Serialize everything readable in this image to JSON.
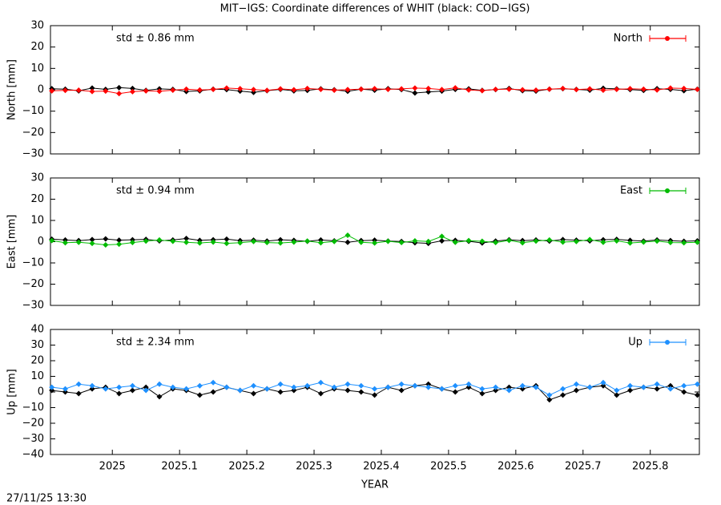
{
  "title": "MIT−IGS: Coordinate differences of WHIT (black: COD−IGS)",
  "x_label": "YEAR",
  "timestamp": "27/11/25 13:30",
  "chart_data": [
    {
      "type": "scatter",
      "y_label": "North [mm]",
      "annotation": "std ± 0.86 mm",
      "annotation_color": "#ff0000",
      "legend": "top-right",
      "xlim": [
        2024.908,
        2025.873
      ],
      "xticks": [
        2025,
        2025.1,
        2025.2,
        2025.3,
        2025.4,
        2025.5,
        2025.6,
        2025.7,
        2025.8
      ],
      "ylim": [
        -30,
        30
      ],
      "yticks": [
        {
          "value": -30,
          "label": "−30"
        },
        {
          "value": -20,
          "label": "−20"
        },
        {
          "value": -10,
          "label": "−10"
        },
        0,
        10,
        20,
        30
      ],
      "x": [
        2024.91,
        2024.93,
        2024.95,
        2024.97,
        2024.99,
        2025.01,
        2025.03,
        2025.05,
        2025.07,
        2025.09,
        2025.11,
        2025.13,
        2025.15,
        2025.17,
        2025.19,
        2025.21,
        2025.23,
        2025.25,
        2025.27,
        2025.29,
        2025.31,
        2025.33,
        2025.35,
        2025.37,
        2025.39,
        2025.41,
        2025.43,
        2025.45,
        2025.47,
        2025.49,
        2025.51,
        2025.53,
        2025.55,
        2025.57,
        2025.59,
        2025.61,
        2025.63,
        2025.65,
        2025.67,
        2025.69,
        2025.71,
        2025.73,
        2025.75,
        2025.77,
        2025.79,
        2025.81,
        2025.83,
        2025.85,
        2025.87
      ],
      "series": [
        {
          "color": "#000000",
          "values": [
            0.5,
            0.3,
            -0.5,
            0.8,
            0.2,
            1.0,
            0.6,
            -0.3,
            0.4,
            0.2,
            -0.8,
            -0.5,
            0.3,
            0.1,
            -0.6,
            -1.2,
            -0.4,
            0.2,
            -0.5,
            -0.3,
            0.4,
            0.0,
            -0.7,
            0.3,
            -0.2,
            0.5,
            0.1,
            -1.5,
            -1.0,
            -0.6,
            0.2,
            0.4,
            -0.3,
            0.1,
            0.6,
            -0.4,
            -0.6,
            0.3,
            0.5,
            0.2,
            -0.2,
            0.7,
            0.4,
            0.1,
            -0.3,
            0.5,
            0.2,
            -0.4,
            0.3
          ]
        },
        {
          "name": "North",
          "color": "#ff0000",
          "values": [
            -0.5,
            -0.3,
            -0.2,
            -0.8,
            -0.6,
            -1.8,
            -0.9,
            -0.5,
            -0.7,
            -0.2,
            0.3,
            -0.1,
            0.2,
            0.8,
            0.5,
            0.1,
            -0.3,
            0.4,
            0.0,
            0.6,
            0.2,
            -0.2,
            0.1,
            0.3,
            0.5,
            0.2,
            0.4,
            0.8,
            0.6,
            0.1,
            0.9,
            -0.1,
            -0.4,
            0.2,
            0.3,
            0.0,
            -0.2,
            0.3,
            0.6,
            0.1,
            0.4,
            -0.2,
            0.2,
            0.5,
            0.3,
            -0.1,
            0.8,
            0.6,
            0.2
          ]
        }
      ]
    },
    {
      "type": "scatter",
      "y_label": "East [mm]",
      "annotation": "std ± 0.94 mm",
      "annotation_color": "#00bb00",
      "legend": "top-right",
      "xlim": [
        2024.908,
        2025.873
      ],
      "xticks": [
        2025,
        2025.1,
        2025.2,
        2025.3,
        2025.4,
        2025.5,
        2025.6,
        2025.7,
        2025.8
      ],
      "ylim": [
        -30,
        30
      ],
      "yticks": [
        {
          "value": -30,
          "label": "−30"
        },
        {
          "value": -20,
          "label": "−20"
        },
        {
          "value": -10,
          "label": "−10"
        },
        0,
        10,
        20,
        30
      ],
      "x": [
        2024.91,
        2024.93,
        2024.95,
        2024.97,
        2024.99,
        2025.01,
        2025.03,
        2025.05,
        2025.07,
        2025.09,
        2025.11,
        2025.13,
        2025.15,
        2025.17,
        2025.19,
        2025.21,
        2025.23,
        2025.25,
        2025.27,
        2025.29,
        2025.31,
        2025.33,
        2025.35,
        2025.37,
        2025.39,
        2025.41,
        2025.43,
        2025.45,
        2025.47,
        2025.49,
        2025.51,
        2025.53,
        2025.55,
        2025.57,
        2025.59,
        2025.61,
        2025.63,
        2025.65,
        2025.67,
        2025.69,
        2025.71,
        2025.73,
        2025.75,
        2025.77,
        2025.79,
        2025.81,
        2025.83,
        2025.85,
        2025.87
      ],
      "series": [
        {
          "color": "#000000",
          "values": [
            1.2,
            0.8,
            0.5,
            1.0,
            1.3,
            0.7,
            0.9,
            1.1,
            0.4,
            0.8,
            1.5,
            0.6,
            0.9,
            1.2,
            0.5,
            0.7,
            0.3,
            0.9,
            0.6,
            0.2,
            0.8,
            0.4,
            -0.3,
            0.5,
            0.7,
            0.3,
            0.1,
            -0.5,
            -0.8,
            0.4,
            0.6,
            0.2,
            -0.6,
            0.3,
            0.9,
            0.5,
            0.8,
            0.3,
            1.0,
            0.7,
            0.4,
            0.9,
            1.1,
            0.6,
            0.3,
            0.8,
            0.5,
            0.2,
            0.4
          ]
        },
        {
          "name": "East",
          "color": "#00bb00",
          "values": [
            0.5,
            -0.5,
            -0.3,
            -0.8,
            -1.5,
            -1.2,
            -0.4,
            0.3,
            0.8,
            0.2,
            -0.3,
            -0.6,
            -0.2,
            -0.8,
            -0.5,
            0.1,
            -0.4,
            -0.6,
            -0.2,
            0.3,
            -0.5,
            0.1,
            3.0,
            -0.3,
            -0.6,
            0.2,
            -0.4,
            0.4,
            0.1,
            2.5,
            -0.3,
            0.5,
            0.2,
            -0.4,
            0.6,
            -0.5,
            0.3,
            0.8,
            -0.2,
            0.1,
            1.0,
            -0.3,
            0.4,
            -0.6,
            -0.2,
            0.3,
            -0.4,
            -0.5,
            -0.3
          ]
        }
      ]
    },
    {
      "type": "scatter",
      "y_label": "Up [mm]",
      "annotation": "std ± 2.34 mm",
      "annotation_color": "#1e90ff",
      "legend": "top-right",
      "xlim": [
        2024.908,
        2025.873
      ],
      "xticks": [
        2025,
        2025.1,
        2025.2,
        2025.3,
        2025.4,
        2025.5,
        2025.6,
        2025.7,
        2025.8
      ],
      "ylim": [
        -40,
        40
      ],
      "yticks": [
        {
          "value": -40,
          "label": "−40"
        },
        {
          "value": -30,
          "label": "−30"
        },
        {
          "value": -20,
          "label": "−20"
        },
        {
          "value": -10,
          "label": "−10"
        },
        0,
        10,
        20,
        30,
        40
      ],
      "x": [
        2024.91,
        2024.93,
        2024.95,
        2024.97,
        2024.99,
        2025.01,
        2025.03,
        2025.05,
        2025.07,
        2025.09,
        2025.11,
        2025.13,
        2025.15,
        2025.17,
        2025.19,
        2025.21,
        2025.23,
        2025.25,
        2025.27,
        2025.29,
        2025.31,
        2025.33,
        2025.35,
        2025.37,
        2025.39,
        2025.41,
        2025.43,
        2025.45,
        2025.47,
        2025.49,
        2025.51,
        2025.53,
        2025.55,
        2025.57,
        2025.59,
        2025.61,
        2025.63,
        2025.65,
        2025.67,
        2025.69,
        2025.71,
        2025.73,
        2025.75,
        2025.77,
        2025.79,
        2025.81,
        2025.83,
        2025.85,
        2025.87
      ],
      "series": [
        {
          "color": "#000000",
          "values": [
            1,
            0,
            -1,
            2,
            3,
            -1,
            1,
            3,
            -3,
            2,
            1,
            -2,
            0,
            3,
            1,
            -1,
            2,
            0,
            1,
            3,
            -1,
            2,
            1,
            0,
            -2,
            3,
            1,
            4,
            5,
            2,
            0,
            3,
            -1,
            1,
            3,
            2,
            4,
            -5,
            -2,
            1,
            3,
            4,
            -2,
            1,
            3,
            2,
            4,
            0,
            -2
          ]
        },
        {
          "name": "Up",
          "color": "#1e90ff",
          "values": [
            3,
            2,
            5,
            4,
            2,
            3,
            4,
            1,
            5,
            3,
            2,
            4,
            6,
            3,
            1,
            4,
            2,
            5,
            3,
            4,
            6,
            3,
            5,
            4,
            2,
            3,
            5,
            4,
            3,
            2,
            4,
            5,
            2,
            3,
            1,
            4,
            3,
            -2,
            2,
            5,
            3,
            6,
            1,
            4,
            3,
            5,
            2,
            4,
            5
          ]
        }
      ]
    }
  ]
}
